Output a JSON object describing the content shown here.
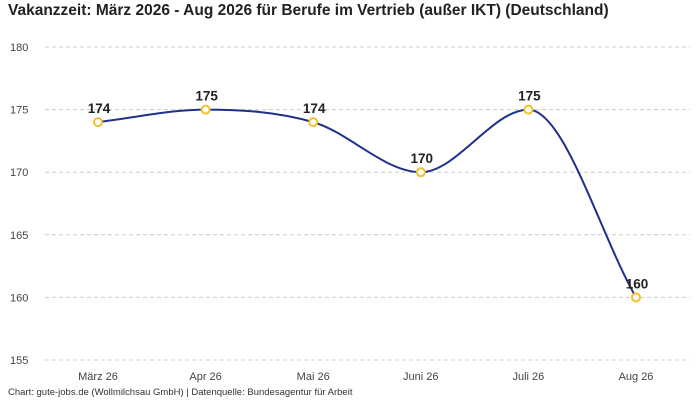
{
  "chart_data": {
    "type": "line",
    "title": "Vakanzzeit: März 2026 - Aug 2026 für Berufe im Vertrieb (außer IKT) (Deutschland)",
    "xlabel": "",
    "ylabel": "",
    "categories": [
      "März 26",
      "Apr 26",
      "Mai 26",
      "Juni 26",
      "Juli 26",
      "Aug 26"
    ],
    "series": [
      {
        "values": [
          174,
          175,
          174,
          170,
          175,
          160
        ]
      }
    ],
    "ylim": [
      155,
      180
    ],
    "yticks": [
      155,
      160,
      165,
      170,
      175,
      180
    ],
    "grid": "horizontal-dashed",
    "legend": "none",
    "line_style": "smooth",
    "colors": {
      "line": "#1f2f8c",
      "marker_fill": "#ffffff",
      "marker_stroke": "#f2c029",
      "grid": "#cccccc"
    }
  },
  "footer": "Chart: gute-jobs.de (Wollmilchsau GmbH) | Datenquelle: Bundesagentur für Arbeit"
}
